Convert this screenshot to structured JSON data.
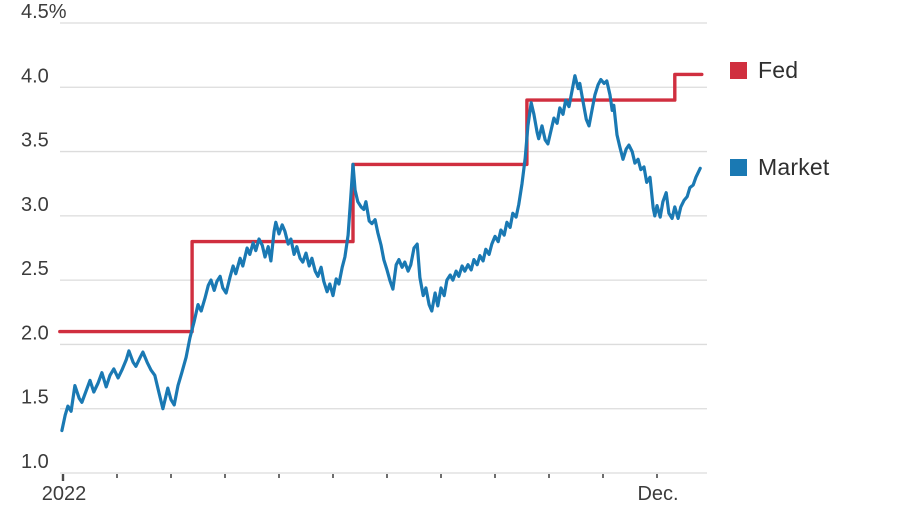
{
  "page": {
    "background": "#ffffff"
  },
  "legend": {
    "items": [
      {
        "label": "Fed",
        "color": "#d02f3f"
      },
      {
        "label": "Market",
        "color": "#1a79b3"
      }
    ]
  },
  "chart_data": {
    "type": "line",
    "title": "",
    "grid": true,
    "legend_position": "right",
    "colors": {
      "fed": "#d02f3f",
      "market": "#1a79b3",
      "gridline": "#dcdcdc",
      "tick": "#4a4a4a",
      "label_text": "#3c3c3c"
    },
    "y_axis": {
      "unit": "percent",
      "range": [
        1.0,
        4.5
      ],
      "ticks": [
        {
          "value": 4.5,
          "label": "4.5%"
        },
        {
          "value": 4.0,
          "label": "4.0"
        },
        {
          "value": 3.5,
          "label": "3.5"
        },
        {
          "value": 3.0,
          "label": "3.0"
        },
        {
          "value": 2.5,
          "label": "2.5"
        },
        {
          "value": 2.0,
          "label": "2.0"
        },
        {
          "value": 1.5,
          "label": "1.5"
        },
        {
          "value": 1.0,
          "label": "1.0"
        }
      ]
    },
    "x_axis": {
      "unit": "months since Jan 2022",
      "range": [
        0,
        12
      ],
      "ticks": [
        {
          "t": 0,
          "label": "2022"
        },
        {
          "t": 1,
          "label": ""
        },
        {
          "t": 2,
          "label": ""
        },
        {
          "t": 3,
          "label": ""
        },
        {
          "t": 4,
          "label": ""
        },
        {
          "t": 5,
          "label": ""
        },
        {
          "t": 6,
          "label": ""
        },
        {
          "t": 7,
          "label": ""
        },
        {
          "t": 8,
          "label": ""
        },
        {
          "t": 9,
          "label": ""
        },
        {
          "t": 10,
          "label": ""
        },
        {
          "t": 11,
          "label": "Dec."
        }
      ]
    },
    "series": [
      {
        "name": "Fed",
        "style": "step",
        "color": "#d02f3f",
        "points": [
          [
            -0.06,
            2.1
          ],
          [
            2.39,
            2.1
          ],
          [
            2.39,
            2.8
          ],
          [
            5.37,
            2.8
          ],
          [
            5.37,
            3.4
          ],
          [
            8.59,
            3.4
          ],
          [
            8.59,
            3.9
          ],
          [
            11.33,
            3.9
          ],
          [
            11.33,
            4.1
          ],
          [
            11.83,
            4.1
          ]
        ]
      },
      {
        "name": "Market",
        "style": "line",
        "color": "#1a79b3",
        "points": [
          [
            -0.02,
            1.33
          ],
          [
            0.04,
            1.45
          ],
          [
            0.09,
            1.52
          ],
          [
            0.15,
            1.48
          ],
          [
            0.22,
            1.68
          ],
          [
            0.3,
            1.58
          ],
          [
            0.35,
            1.55
          ],
          [
            0.43,
            1.64
          ],
          [
            0.5,
            1.72
          ],
          [
            0.57,
            1.63
          ],
          [
            0.65,
            1.7
          ],
          [
            0.72,
            1.78
          ],
          [
            0.8,
            1.67
          ],
          [
            0.87,
            1.76
          ],
          [
            0.94,
            1.81
          ],
          [
            1.02,
            1.74
          ],
          [
            1.09,
            1.8
          ],
          [
            1.17,
            1.88
          ],
          [
            1.22,
            1.95
          ],
          [
            1.3,
            1.86
          ],
          [
            1.35,
            1.83
          ],
          [
            1.43,
            1.9
          ],
          [
            1.48,
            1.94
          ],
          [
            1.56,
            1.86
          ],
          [
            1.63,
            1.8
          ],
          [
            1.7,
            1.76
          ],
          [
            1.78,
            1.62
          ],
          [
            1.85,
            1.5
          ],
          [
            1.94,
            1.66
          ],
          [
            2.0,
            1.57
          ],
          [
            2.06,
            1.53
          ],
          [
            2.13,
            1.68
          ],
          [
            2.2,
            1.78
          ],
          [
            2.28,
            1.9
          ],
          [
            2.35,
            2.05
          ],
          [
            2.43,
            2.18
          ],
          [
            2.5,
            2.31
          ],
          [
            2.56,
            2.26
          ],
          [
            2.63,
            2.36
          ],
          [
            2.69,
            2.46
          ],
          [
            2.74,
            2.5
          ],
          [
            2.8,
            2.42
          ],
          [
            2.85,
            2.49
          ],
          [
            2.91,
            2.53
          ],
          [
            2.96,
            2.44
          ],
          [
            3.02,
            2.4
          ],
          [
            3.09,
            2.52
          ],
          [
            3.15,
            2.61
          ],
          [
            3.2,
            2.55
          ],
          [
            3.28,
            2.67
          ],
          [
            3.33,
            2.61
          ],
          [
            3.41,
            2.75
          ],
          [
            3.46,
            2.7
          ],
          [
            3.52,
            2.79
          ],
          [
            3.57,
            2.73
          ],
          [
            3.63,
            2.82
          ],
          [
            3.69,
            2.77
          ],
          [
            3.74,
            2.68
          ],
          [
            3.8,
            2.76
          ],
          [
            3.85,
            2.65
          ],
          [
            3.91,
            2.88
          ],
          [
            3.94,
            2.95
          ],
          [
            4.0,
            2.86
          ],
          [
            4.06,
            2.93
          ],
          [
            4.11,
            2.88
          ],
          [
            4.17,
            2.78
          ],
          [
            4.22,
            2.82
          ],
          [
            4.28,
            2.7
          ],
          [
            4.33,
            2.76
          ],
          [
            4.39,
            2.67
          ],
          [
            4.44,
            2.64
          ],
          [
            4.5,
            2.71
          ],
          [
            4.56,
            2.61
          ],
          [
            4.61,
            2.67
          ],
          [
            4.67,
            2.57
          ],
          [
            4.72,
            2.53
          ],
          [
            4.78,
            2.6
          ],
          [
            4.83,
            2.49
          ],
          [
            4.89,
            2.41
          ],
          [
            4.94,
            2.47
          ],
          [
            5.0,
            2.38
          ],
          [
            5.06,
            2.51
          ],
          [
            5.11,
            2.47
          ],
          [
            5.17,
            2.6
          ],
          [
            5.22,
            2.68
          ],
          [
            5.28,
            2.85
          ],
          [
            5.33,
            3.15
          ],
          [
            5.37,
            3.4
          ],
          [
            5.41,
            3.2
          ],
          [
            5.46,
            3.11
          ],
          [
            5.52,
            3.07
          ],
          [
            5.57,
            3.05
          ],
          [
            5.61,
            3.11
          ],
          [
            5.67,
            2.96
          ],
          [
            5.72,
            2.94
          ],
          [
            5.78,
            2.97
          ],
          [
            5.83,
            2.87
          ],
          [
            5.89,
            2.77
          ],
          [
            5.94,
            2.66
          ],
          [
            6.0,
            2.58
          ],
          [
            6.06,
            2.49
          ],
          [
            6.11,
            2.43
          ],
          [
            6.17,
            2.62
          ],
          [
            6.22,
            2.66
          ],
          [
            6.28,
            2.6
          ],
          [
            6.33,
            2.64
          ],
          [
            6.39,
            2.57
          ],
          [
            6.44,
            2.62
          ],
          [
            6.5,
            2.75
          ],
          [
            6.56,
            2.78
          ],
          [
            6.61,
            2.52
          ],
          [
            6.67,
            2.38
          ],
          [
            6.72,
            2.44
          ],
          [
            6.78,
            2.31
          ],
          [
            6.83,
            2.26
          ],
          [
            6.89,
            2.4
          ],
          [
            6.94,
            2.3
          ],
          [
            7.0,
            2.44
          ],
          [
            7.06,
            2.38
          ],
          [
            7.11,
            2.5
          ],
          [
            7.17,
            2.54
          ],
          [
            7.22,
            2.5
          ],
          [
            7.28,
            2.57
          ],
          [
            7.33,
            2.53
          ],
          [
            7.39,
            2.61
          ],
          [
            7.44,
            2.57
          ],
          [
            7.5,
            2.62
          ],
          [
            7.56,
            2.58
          ],
          [
            7.61,
            2.66
          ],
          [
            7.67,
            2.62
          ],
          [
            7.72,
            2.69
          ],
          [
            7.78,
            2.65
          ],
          [
            7.83,
            2.74
          ],
          [
            7.89,
            2.7
          ],
          [
            7.94,
            2.78
          ],
          [
            8.0,
            2.84
          ],
          [
            8.06,
            2.8
          ],
          [
            8.11,
            2.89
          ],
          [
            8.17,
            2.85
          ],
          [
            8.22,
            2.95
          ],
          [
            8.28,
            2.91
          ],
          [
            8.33,
            3.02
          ],
          [
            8.39,
            2.99
          ],
          [
            8.44,
            3.09
          ],
          [
            8.5,
            3.25
          ],
          [
            8.56,
            3.45
          ],
          [
            8.61,
            3.7
          ],
          [
            8.67,
            3.88
          ],
          [
            8.72,
            3.79
          ],
          [
            8.78,
            3.65
          ],
          [
            8.81,
            3.6
          ],
          [
            8.87,
            3.7
          ],
          [
            8.93,
            3.59
          ],
          [
            8.98,
            3.56
          ],
          [
            9.04,
            3.67
          ],
          [
            9.09,
            3.76
          ],
          [
            9.15,
            3.72
          ],
          [
            9.2,
            3.84
          ],
          [
            9.26,
            3.79
          ],
          [
            9.31,
            3.9
          ],
          [
            9.37,
            3.85
          ],
          [
            9.43,
            3.98
          ],
          [
            9.48,
            4.09
          ],
          [
            9.54,
            3.99
          ],
          [
            9.57,
            4.03
          ],
          [
            9.63,
            3.89
          ],
          [
            9.69,
            3.75
          ],
          [
            9.74,
            3.7
          ],
          [
            9.8,
            3.83
          ],
          [
            9.85,
            3.94
          ],
          [
            9.91,
            4.02
          ],
          [
            9.96,
            4.06
          ],
          [
            10.02,
            4.03
          ],
          [
            10.07,
            4.05
          ],
          [
            10.13,
            3.94
          ],
          [
            10.17,
            3.82
          ],
          [
            10.2,
            3.86
          ],
          [
            10.26,
            3.63
          ],
          [
            10.31,
            3.54
          ],
          [
            10.37,
            3.44
          ],
          [
            10.43,
            3.52
          ],
          [
            10.48,
            3.55
          ],
          [
            10.54,
            3.5
          ],
          [
            10.59,
            3.41
          ],
          [
            10.65,
            3.44
          ],
          [
            10.7,
            3.36
          ],
          [
            10.76,
            3.38
          ],
          [
            10.81,
            3.26
          ],
          [
            10.87,
            3.3
          ],
          [
            10.93,
            3.06
          ],
          [
            10.96,
            3.0
          ],
          [
            11.0,
            3.08
          ],
          [
            11.06,
            2.99
          ],
          [
            11.11,
            3.11
          ],
          [
            11.17,
            3.18
          ],
          [
            11.22,
            3.02
          ],
          [
            11.28,
            2.98
          ],
          [
            11.33,
            3.07
          ],
          [
            11.39,
            2.98
          ],
          [
            11.44,
            3.07
          ],
          [
            11.5,
            3.12
          ],
          [
            11.56,
            3.15
          ],
          [
            11.61,
            3.22
          ],
          [
            11.67,
            3.24
          ],
          [
            11.72,
            3.3
          ],
          [
            11.8,
            3.37
          ]
        ]
      }
    ]
  }
}
